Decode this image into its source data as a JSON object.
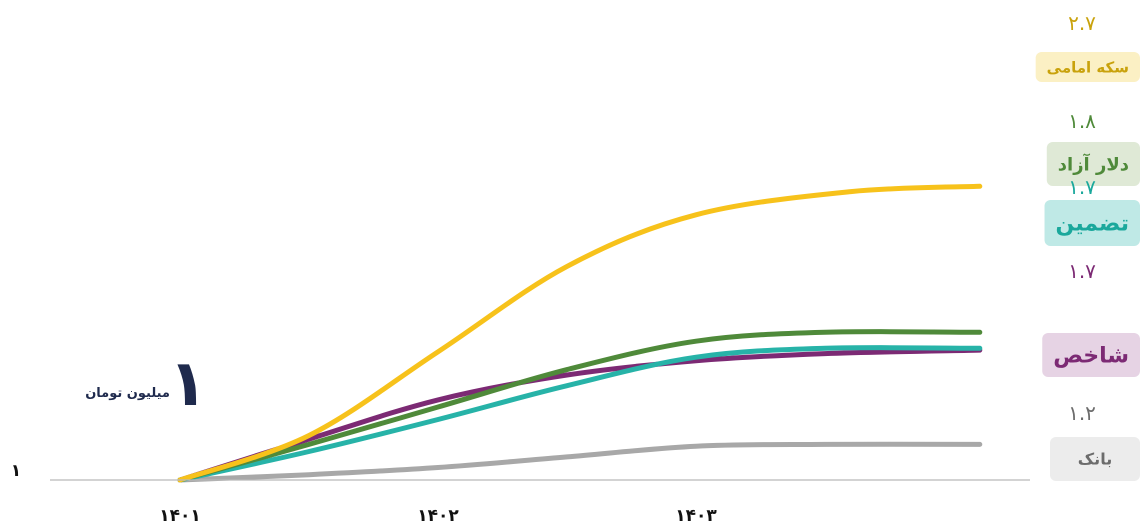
{
  "chart_data": {
    "type": "line",
    "x": [
      "۱۴۰۱",
      "۱۴۰۲",
      "۱۴۰۳"
    ],
    "baseline_label": "۱",
    "unit": {
      "number": "۱",
      "text": "میلیون تومان"
    },
    "series": [
      {
        "name": "سکه امامی",
        "value_label": "۲.۷",
        "color": "#f7c21b",
        "label_bg": "#fbf0c4",
        "label_color": "#c9a20c",
        "label_size": 15,
        "points": [
          [
            0,
            1.0
          ],
          [
            0.5,
            1.25
          ],
          [
            1.0,
            1.72
          ],
          [
            1.5,
            2.2
          ],
          [
            2.0,
            2.49
          ],
          [
            2.6,
            2.62
          ],
          [
            3.1,
            2.65
          ]
        ]
      },
      {
        "name": "دلار آزاد",
        "value_label": "۱.۸",
        "color": "#4f8a3a",
        "label_bg": "#dfe9d6",
        "label_color": "#4f8a3a",
        "label_size": 18,
        "points": [
          [
            0,
            1.0
          ],
          [
            0.5,
            1.2
          ],
          [
            1.0,
            1.41
          ],
          [
            1.5,
            1.62
          ],
          [
            2.0,
            1.78
          ],
          [
            2.5,
            1.83
          ],
          [
            3.1,
            1.83
          ]
        ]
      },
      {
        "name": "تضمین",
        "value_label": "۱.۷",
        "color": "#27b3a8",
        "label_bg": "#bfe9e6",
        "label_color": "#1aa89c",
        "label_size": 22,
        "points": [
          [
            0,
            1.0
          ],
          [
            0.5,
            1.16
          ],
          [
            1.0,
            1.34
          ],
          [
            1.5,
            1.53
          ],
          [
            2.0,
            1.69
          ],
          [
            2.5,
            1.74
          ],
          [
            3.1,
            1.74
          ]
        ]
      },
      {
        "name": "شاخص",
        "value_label": "۱.۷",
        "color": "#7c2a74",
        "label_bg": "#e6d3e4",
        "label_color": "#7c2a74",
        "label_size": 22,
        "points": [
          [
            0,
            1.0
          ],
          [
            0.5,
            1.23
          ],
          [
            1.0,
            1.45
          ],
          [
            1.5,
            1.59
          ],
          [
            2.0,
            1.67
          ],
          [
            2.5,
            1.71
          ],
          [
            3.1,
            1.73
          ]
        ]
      },
      {
        "name": "بانک",
        "value_label": "۱.۲",
        "color": "#a8a8a8",
        "label_bg": "#ececec",
        "label_color": "#6c6c6c",
        "label_size": 16,
        "points": [
          [
            0,
            1.0
          ],
          [
            0.5,
            1.03
          ],
          [
            1.0,
            1.07
          ],
          [
            1.5,
            1.13
          ],
          [
            2.0,
            1.19
          ],
          [
            2.5,
            1.2
          ],
          [
            3.1,
            1.2
          ]
        ]
      }
    ],
    "ylim": [
      1.0,
      3.0
    ],
    "grid": false,
    "legend_position": "right"
  }
}
